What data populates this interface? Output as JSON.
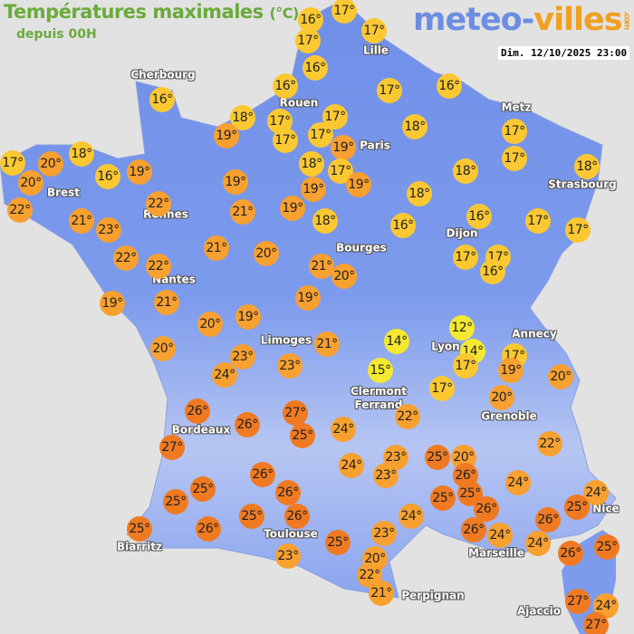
{
  "header": {
    "title": "Températures maximales",
    "unit": "(°C)",
    "subtitle": "depuis 00H",
    "logo": "meteo-villes",
    "logo_suffix": ".com",
    "datetime": "Dim. 12/10/2025 23:00"
  },
  "colors": {
    "sea": "#e2e2e2",
    "land": "#6f8fe8",
    "land_light": "#b8c8f4",
    "t_cold": "#f5e830",
    "t_mild": "#fbc832",
    "t_warm": "#f8a030",
    "t_hot": "#f07a22",
    "title": "#6aaa3a"
  },
  "cities": [
    "Cherbourg",
    "Lille",
    "Rouen",
    "Paris",
    "Metz",
    "Strasbourg",
    "Brest",
    "Rennes",
    "Dijon",
    "Bourges",
    "Nantes",
    "Limoges",
    "Lyon",
    "Annecy",
    "Clermont\nFerrand",
    "Grenoble",
    "Bordeaux",
    "Toulouse",
    "Biarritz",
    "Perpignan",
    "Marseille",
    "Nice",
    "Ajaccio"
  ],
  "temperatures": [
    "17°",
    "16°",
    "17°",
    "17°",
    "16°",
    "16°",
    "17°",
    "16°",
    "16°",
    "18°",
    "17°",
    "17°",
    "19°",
    "17°",
    "17°",
    "19°",
    "18°",
    "17°",
    "17°",
    "18°",
    "17°",
    "20°",
    "20°",
    "16°",
    "19°",
    "18°",
    "17°",
    "19°",
    "18°",
    "18°",
    "19°",
    "19°",
    "18°",
    "22°",
    "22°",
    "21°",
    "23°",
    "21°",
    "19°",
    "18°",
    "16°",
    "16°",
    "17°",
    "17°",
    "22°",
    "22°",
    "21°",
    "20°",
    "21°",
    "20°",
    "17°",
    "17°",
    "16°",
    "19°",
    "21°",
    "20°",
    "19°",
    "19°",
    "20°",
    "21°",
    "14°",
    "12°",
    "14°",
    "17°",
    "19°",
    "17°",
    "20°",
    "23°",
    "23°",
    "24°",
    "15°",
    "17°",
    "20°",
    "26°",
    "27°",
    "25°",
    "26°",
    "24°",
    "22°",
    "22°",
    "27°",
    "23°",
    "25°",
    "20°",
    "24°",
    "23°",
    "26°",
    "26°",
    "24°",
    "25°",
    "26°",
    "25°",
    "25°",
    "24°",
    "25°",
    "25°",
    "26°",
    "26°",
    "24°",
    "26°",
    "25°",
    "26°",
    "25°",
    "26°",
    "23°",
    "24°",
    "24°",
    "25°",
    "25°",
    "26°",
    "23°",
    "20°",
    "22°",
    "21°",
    "27°",
    "24°",
    "27°"
  ]
}
